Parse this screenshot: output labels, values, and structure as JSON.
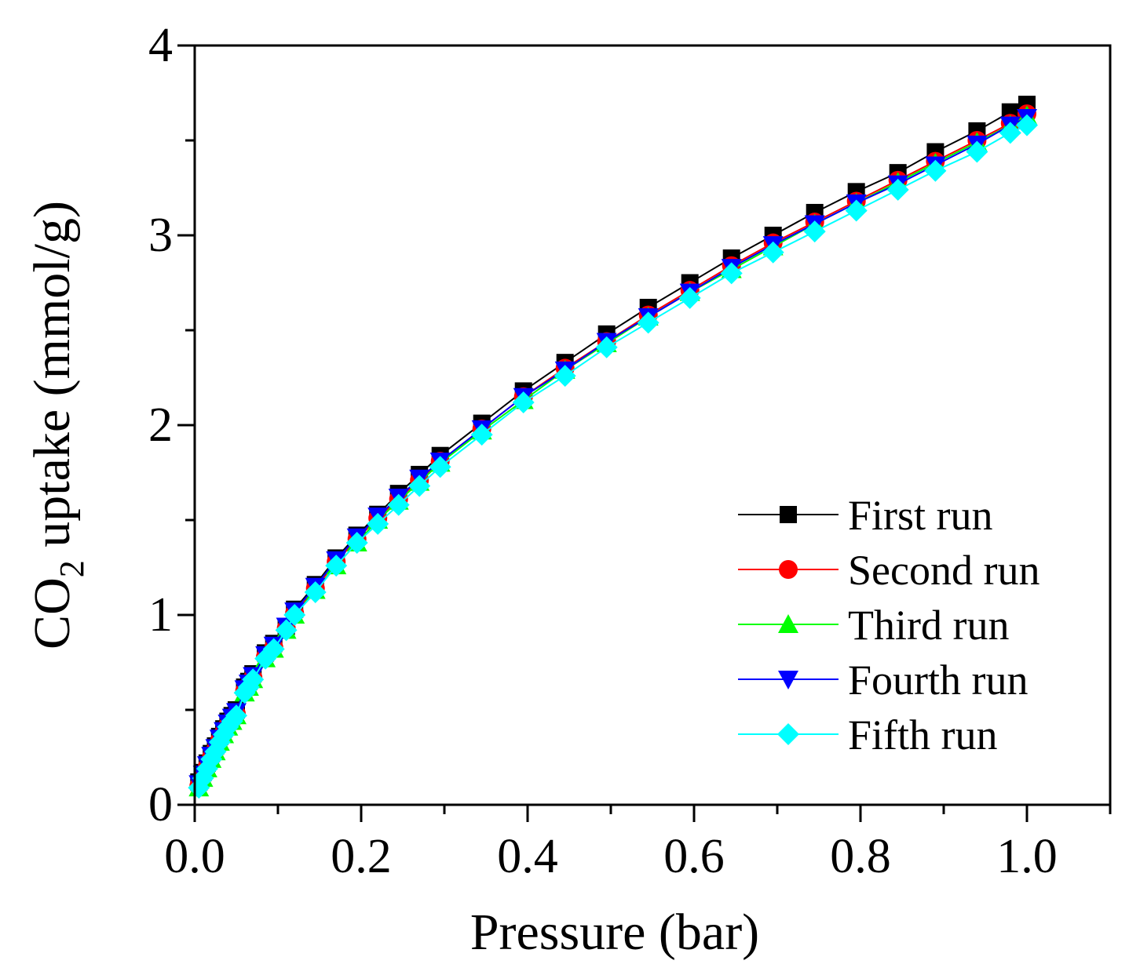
{
  "chart_data": {
    "type": "line",
    "title": "",
    "xlabel": "Pressure (bar)",
    "ylabel": {
      "prefix": "CO",
      "subscript": "2",
      "suffix": " uptake (mmol/g)"
    },
    "xlim": [
      0.0,
      1.1
    ],
    "ylim": [
      0,
      4
    ],
    "xticks": [
      "0.0",
      "0.2",
      "0.4",
      "0.6",
      "0.8",
      "1.0"
    ],
    "yticks": [
      "0",
      "1",
      "2",
      "3",
      "4"
    ],
    "grid": false,
    "legend_position": "bottom-right",
    "x": [
      0.005,
      0.01,
      0.015,
      0.02,
      0.025,
      0.03,
      0.035,
      0.04,
      0.045,
      0.05,
      0.06,
      0.065,
      0.07,
      0.085,
      0.095,
      0.11,
      0.12,
      0.145,
      0.17,
      0.195,
      0.22,
      0.245,
      0.27,
      0.295,
      0.345,
      0.395,
      0.445,
      0.495,
      0.545,
      0.595,
      0.645,
      0.695,
      0.745,
      0.795,
      0.845,
      0.89,
      0.94,
      0.98,
      1.0
    ],
    "series": [
      {
        "name": "First run",
        "color": "#000000",
        "marker": "square",
        "values": [
          0.12,
          0.17,
          0.22,
          0.27,
          0.31,
          0.36,
          0.4,
          0.44,
          0.47,
          0.5,
          0.62,
          0.65,
          0.69,
          0.8,
          0.85,
          0.94,
          1.03,
          1.16,
          1.3,
          1.42,
          1.53,
          1.64,
          1.74,
          1.84,
          2.01,
          2.18,
          2.33,
          2.48,
          2.62,
          2.75,
          2.88,
          3.0,
          3.12,
          3.23,
          3.33,
          3.44,
          3.55,
          3.65,
          3.69
        ]
      },
      {
        "name": "Second run",
        "color": "#ff0000",
        "marker": "circle",
        "values": [
          0.1,
          0.15,
          0.2,
          0.25,
          0.29,
          0.34,
          0.38,
          0.42,
          0.45,
          0.48,
          0.6,
          0.63,
          0.67,
          0.78,
          0.83,
          0.93,
          1.01,
          1.14,
          1.28,
          1.4,
          1.51,
          1.61,
          1.71,
          1.81,
          1.98,
          2.15,
          2.3,
          2.44,
          2.58,
          2.71,
          2.84,
          2.96,
          3.07,
          3.18,
          3.29,
          3.39,
          3.5,
          3.59,
          3.64
        ]
      },
      {
        "name": "Third run",
        "color": "#00ff00",
        "marker": "triangle-up",
        "values": [
          0.09,
          0.14,
          0.19,
          0.24,
          0.28,
          0.33,
          0.37,
          0.41,
          0.44,
          0.47,
          0.59,
          0.62,
          0.66,
          0.77,
          0.82,
          0.92,
          1.0,
          1.13,
          1.26,
          1.38,
          1.5,
          1.6,
          1.7,
          1.8,
          1.97,
          2.13,
          2.29,
          2.43,
          2.57,
          2.7,
          2.82,
          2.94,
          3.06,
          3.17,
          3.28,
          3.38,
          3.49,
          3.58,
          3.63
        ]
      },
      {
        "name": "Fourth run",
        "color": "#0000ff",
        "marker": "triangle-down",
        "values": [
          0.11,
          0.16,
          0.21,
          0.26,
          0.3,
          0.35,
          0.39,
          0.43,
          0.46,
          0.49,
          0.61,
          0.64,
          0.68,
          0.79,
          0.84,
          0.94,
          1.02,
          1.15,
          1.29,
          1.41,
          1.52,
          1.62,
          1.72,
          1.81,
          1.98,
          2.15,
          2.29,
          2.44,
          2.57,
          2.7,
          2.83,
          2.95,
          3.06,
          3.17,
          3.27,
          3.37,
          3.48,
          3.58,
          3.62
        ]
      },
      {
        "name": "Fifth run",
        "color": "#00ffff",
        "marker": "diamond",
        "values": [
          0.09,
          0.14,
          0.19,
          0.24,
          0.28,
          0.33,
          0.37,
          0.41,
          0.44,
          0.47,
          0.59,
          0.62,
          0.66,
          0.77,
          0.82,
          0.92,
          1.0,
          1.12,
          1.26,
          1.38,
          1.48,
          1.58,
          1.68,
          1.78,
          1.95,
          2.12,
          2.26,
          2.41,
          2.54,
          2.67,
          2.8,
          2.91,
          3.02,
          3.13,
          3.24,
          3.34,
          3.44,
          3.54,
          3.58
        ]
      }
    ]
  }
}
